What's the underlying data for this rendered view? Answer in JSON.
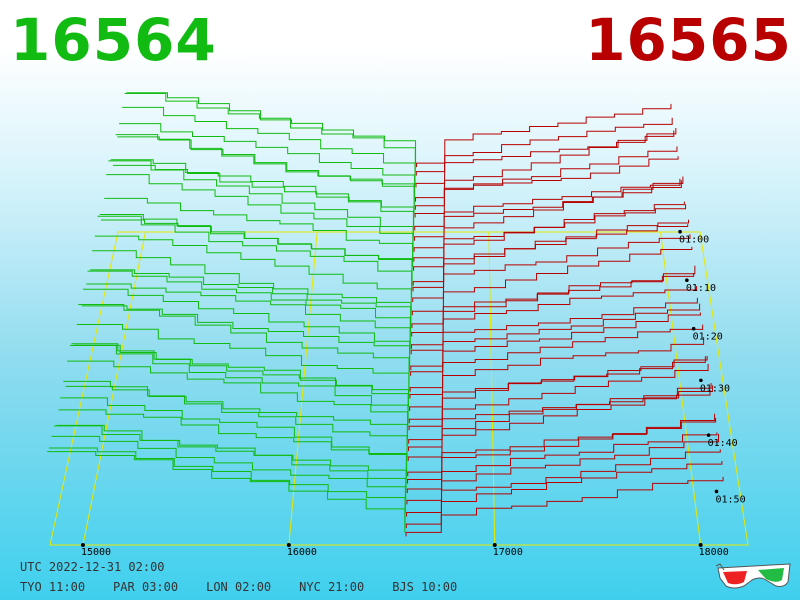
{
  "header": {
    "bid_value": "16564",
    "ask_value": "16565",
    "bid_color": "#11bb11",
    "ask_color": "#b80000"
  },
  "footer": {
    "utc_label": "UTC",
    "utc_datetime": "2022-12-31 02:00",
    "cities": [
      {
        "code": "TYO",
        "time": "11:00"
      },
      {
        "code": "PAR",
        "time": "03:00"
      },
      {
        "code": "LON",
        "time": "02:00"
      },
      {
        "code": "NYC",
        "time": "21:00"
      },
      {
        "code": "BJS",
        "time": "10:00"
      }
    ]
  },
  "icons": {
    "glasses": "3d-glasses-icon"
  },
  "chart_data": {
    "type": "3d-depth-lines",
    "x_ticks": [
      "15000",
      "16000",
      "17000",
      "18000"
    ],
    "x_tick_values": [
      15000,
      16000,
      17000,
      18000
    ],
    "time_ticks": [
      "01:00",
      "01:10",
      "01:20",
      "01:30",
      "01:40",
      "01:50"
    ],
    "mid_price": 16564.5,
    "bid_color": "#11bb11",
    "ask_color": "#b80000",
    "grid_color": "#e8e800",
    "snapshot_count": 36
  }
}
